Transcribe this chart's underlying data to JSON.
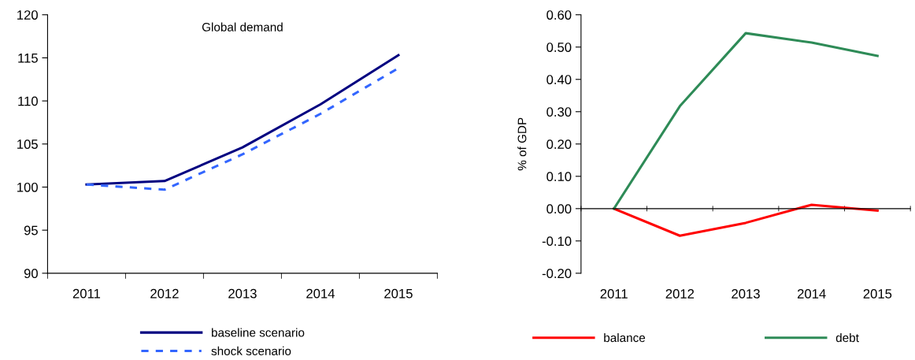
{
  "chart_data": [
    {
      "type": "line",
      "title": "Global demand",
      "categories": [
        "2011",
        "2012",
        "2013",
        "2014",
        "2015"
      ],
      "series": [
        {
          "name": "baseline scenario",
          "color": "#000080",
          "line_style": "solid",
          "values": [
            100.3,
            100.7,
            104.6,
            109.6,
            115.3
          ]
        },
        {
          "name": "shock scenario",
          "color": "#3366ff",
          "line_style": "dashed",
          "values": [
            100.3,
            99.7,
            103.8,
            108.5,
            113.8
          ]
        }
      ],
      "ylim": [
        90,
        120
      ],
      "yticks": [
        90,
        95,
        100,
        105,
        110,
        115,
        120
      ],
      "grid": false,
      "legend": "bottom",
      "marker": "none"
    },
    {
      "type": "line",
      "ylabel": "% of GDP",
      "categories": [
        "2011",
        "2012",
        "2013",
        "2014",
        "2015"
      ],
      "series": [
        {
          "name": "balance",
          "color": "#ff0000",
          "line_style": "solid",
          "values": [
            0,
            -0.084,
            -0.044,
            0.012,
            -0.006
          ]
        },
        {
          "name": "debt",
          "color": "#2e8b57",
          "line_style": "solid",
          "values": [
            0,
            0.317,
            0.543,
            0.514,
            0.473
          ]
        }
      ],
      "ylim": [
        -0.2,
        0.6
      ],
      "yticks": [
        {
          "value": -0.2,
          "label": "-0.20"
        },
        {
          "value": -0.1,
          "label": "-0.10"
        },
        {
          "value": 0,
          "label": "0.00"
        },
        {
          "value": 0.1,
          "label": "0.10"
        },
        {
          "value": 0.2,
          "label": "0.20"
        },
        {
          "value": 0.3,
          "label": "0.30"
        },
        {
          "value": 0.4,
          "label": "0.40"
        },
        {
          "value": 0.5,
          "label": "0.50"
        },
        {
          "value": 0.6,
          "label": "0.60"
        }
      ],
      "legend": "bottom",
      "marker": "none"
    }
  ]
}
